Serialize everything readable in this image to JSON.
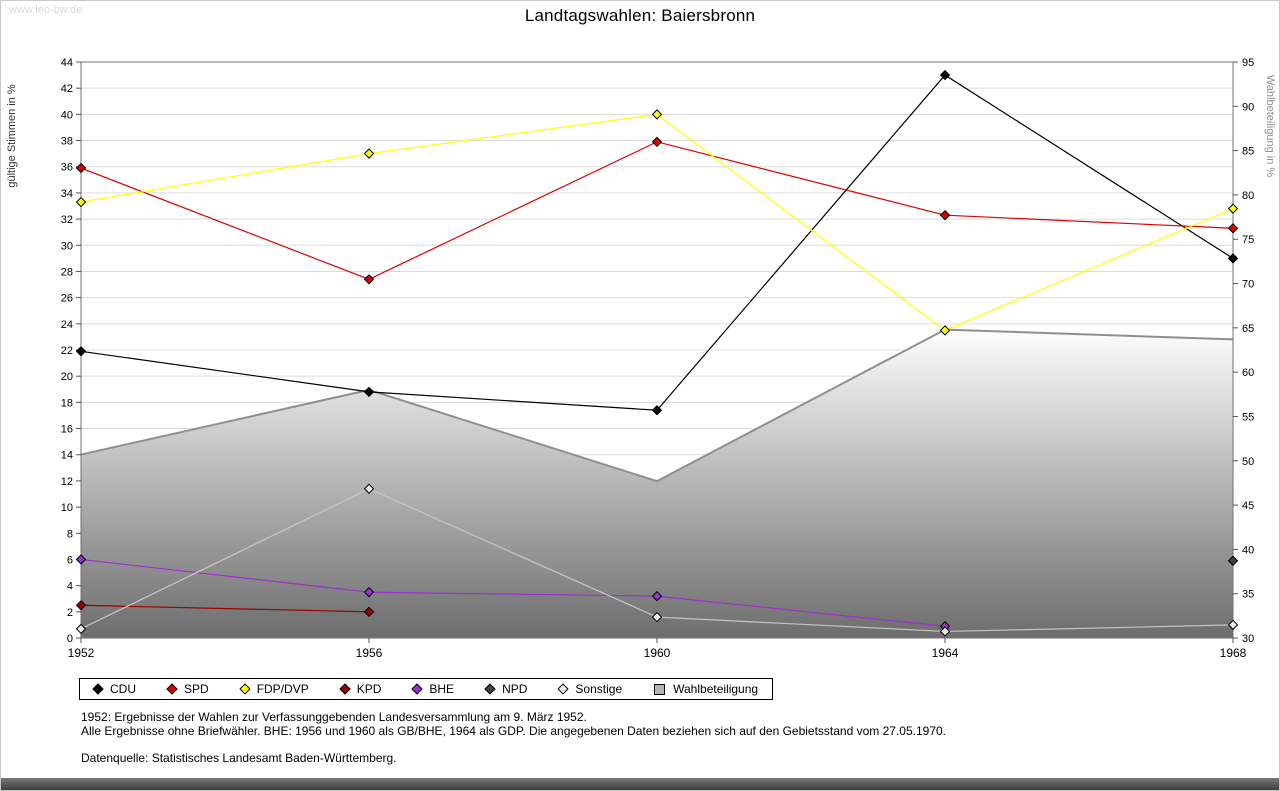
{
  "header": {
    "watermark": "www.leo-bw.de"
  },
  "chart_data": {
    "type": "line",
    "title": "Landtagswahlen: Baiersbronn",
    "x": [
      1952,
      1956,
      1960,
      1964,
      1968
    ],
    "x_tick_labels": [
      "1952",
      "1956",
      "1960",
      "1964",
      "1968"
    ],
    "left_axis": {
      "label": "gültige Stimmen in %",
      "min": 0,
      "max": 44,
      "tick_step": 2
    },
    "right_axis": {
      "label": "Wahlbeteiligung in %",
      "min": 30,
      "max": 95,
      "tick_step": 5
    },
    "grid": true,
    "legend_position": "bottom",
    "series": [
      {
        "name": "CDU",
        "axis": "left",
        "marker": "diamond",
        "color": "#000000",
        "values": [
          21.9,
          18.8,
          17.4,
          43.0,
          29.0
        ]
      },
      {
        "name": "SPD",
        "axis": "left",
        "marker": "diamond",
        "color": "#dd0000",
        "values": [
          35.9,
          27.4,
          37.9,
          32.3,
          31.3
        ]
      },
      {
        "name": "FDP/DVP",
        "axis": "left",
        "marker": "diamond",
        "color": "#ffff00",
        "values": [
          33.3,
          37.0,
          40.0,
          23.5,
          32.8
        ]
      },
      {
        "name": "KPD",
        "axis": "left",
        "marker": "diamond",
        "color": "#990000",
        "values": [
          2.5,
          2.0,
          null,
          null,
          null
        ]
      },
      {
        "name": "BHE",
        "axis": "left",
        "marker": "diamond",
        "color": "#9932cc",
        "values": [
          6.0,
          3.5,
          3.2,
          0.9,
          null
        ]
      },
      {
        "name": "NPD",
        "axis": "left",
        "marker": "diamond",
        "color": "#404040",
        "values": [
          null,
          null,
          null,
          null,
          5.9
        ]
      },
      {
        "name": "Sonstige",
        "axis": "left",
        "marker": "diamond",
        "color": "#c6c6c6",
        "marker_fill": "#ebebeb",
        "values": [
          0.7,
          11.4,
          1.6,
          0.5,
          1.0
        ]
      },
      {
        "name": "Wahlbeteiligung",
        "axis": "right",
        "type": "area",
        "marker": "square",
        "color": "#8f8f8f",
        "swatch_fill": "#b4b4b4",
        "values": [
          50.7,
          58.0,
          47.7,
          64.8,
          63.7
        ]
      }
    ]
  },
  "footnotes": {
    "line1": "1952: Ergebnisse der Wahlen zur Verfassunggebenden Landesversammlung am 9. März 1952.",
    "line2": "Alle Ergebnisse ohne Briefwähler. BHE: 1956 und 1960 als GB/BHE, 1964 als GDP. Die angegebenen Daten beziehen sich auf den Gebietsstand vom 27.05.1970.",
    "source": "Datenquelle: Statistisches Landesamt Baden-Württemberg."
  }
}
